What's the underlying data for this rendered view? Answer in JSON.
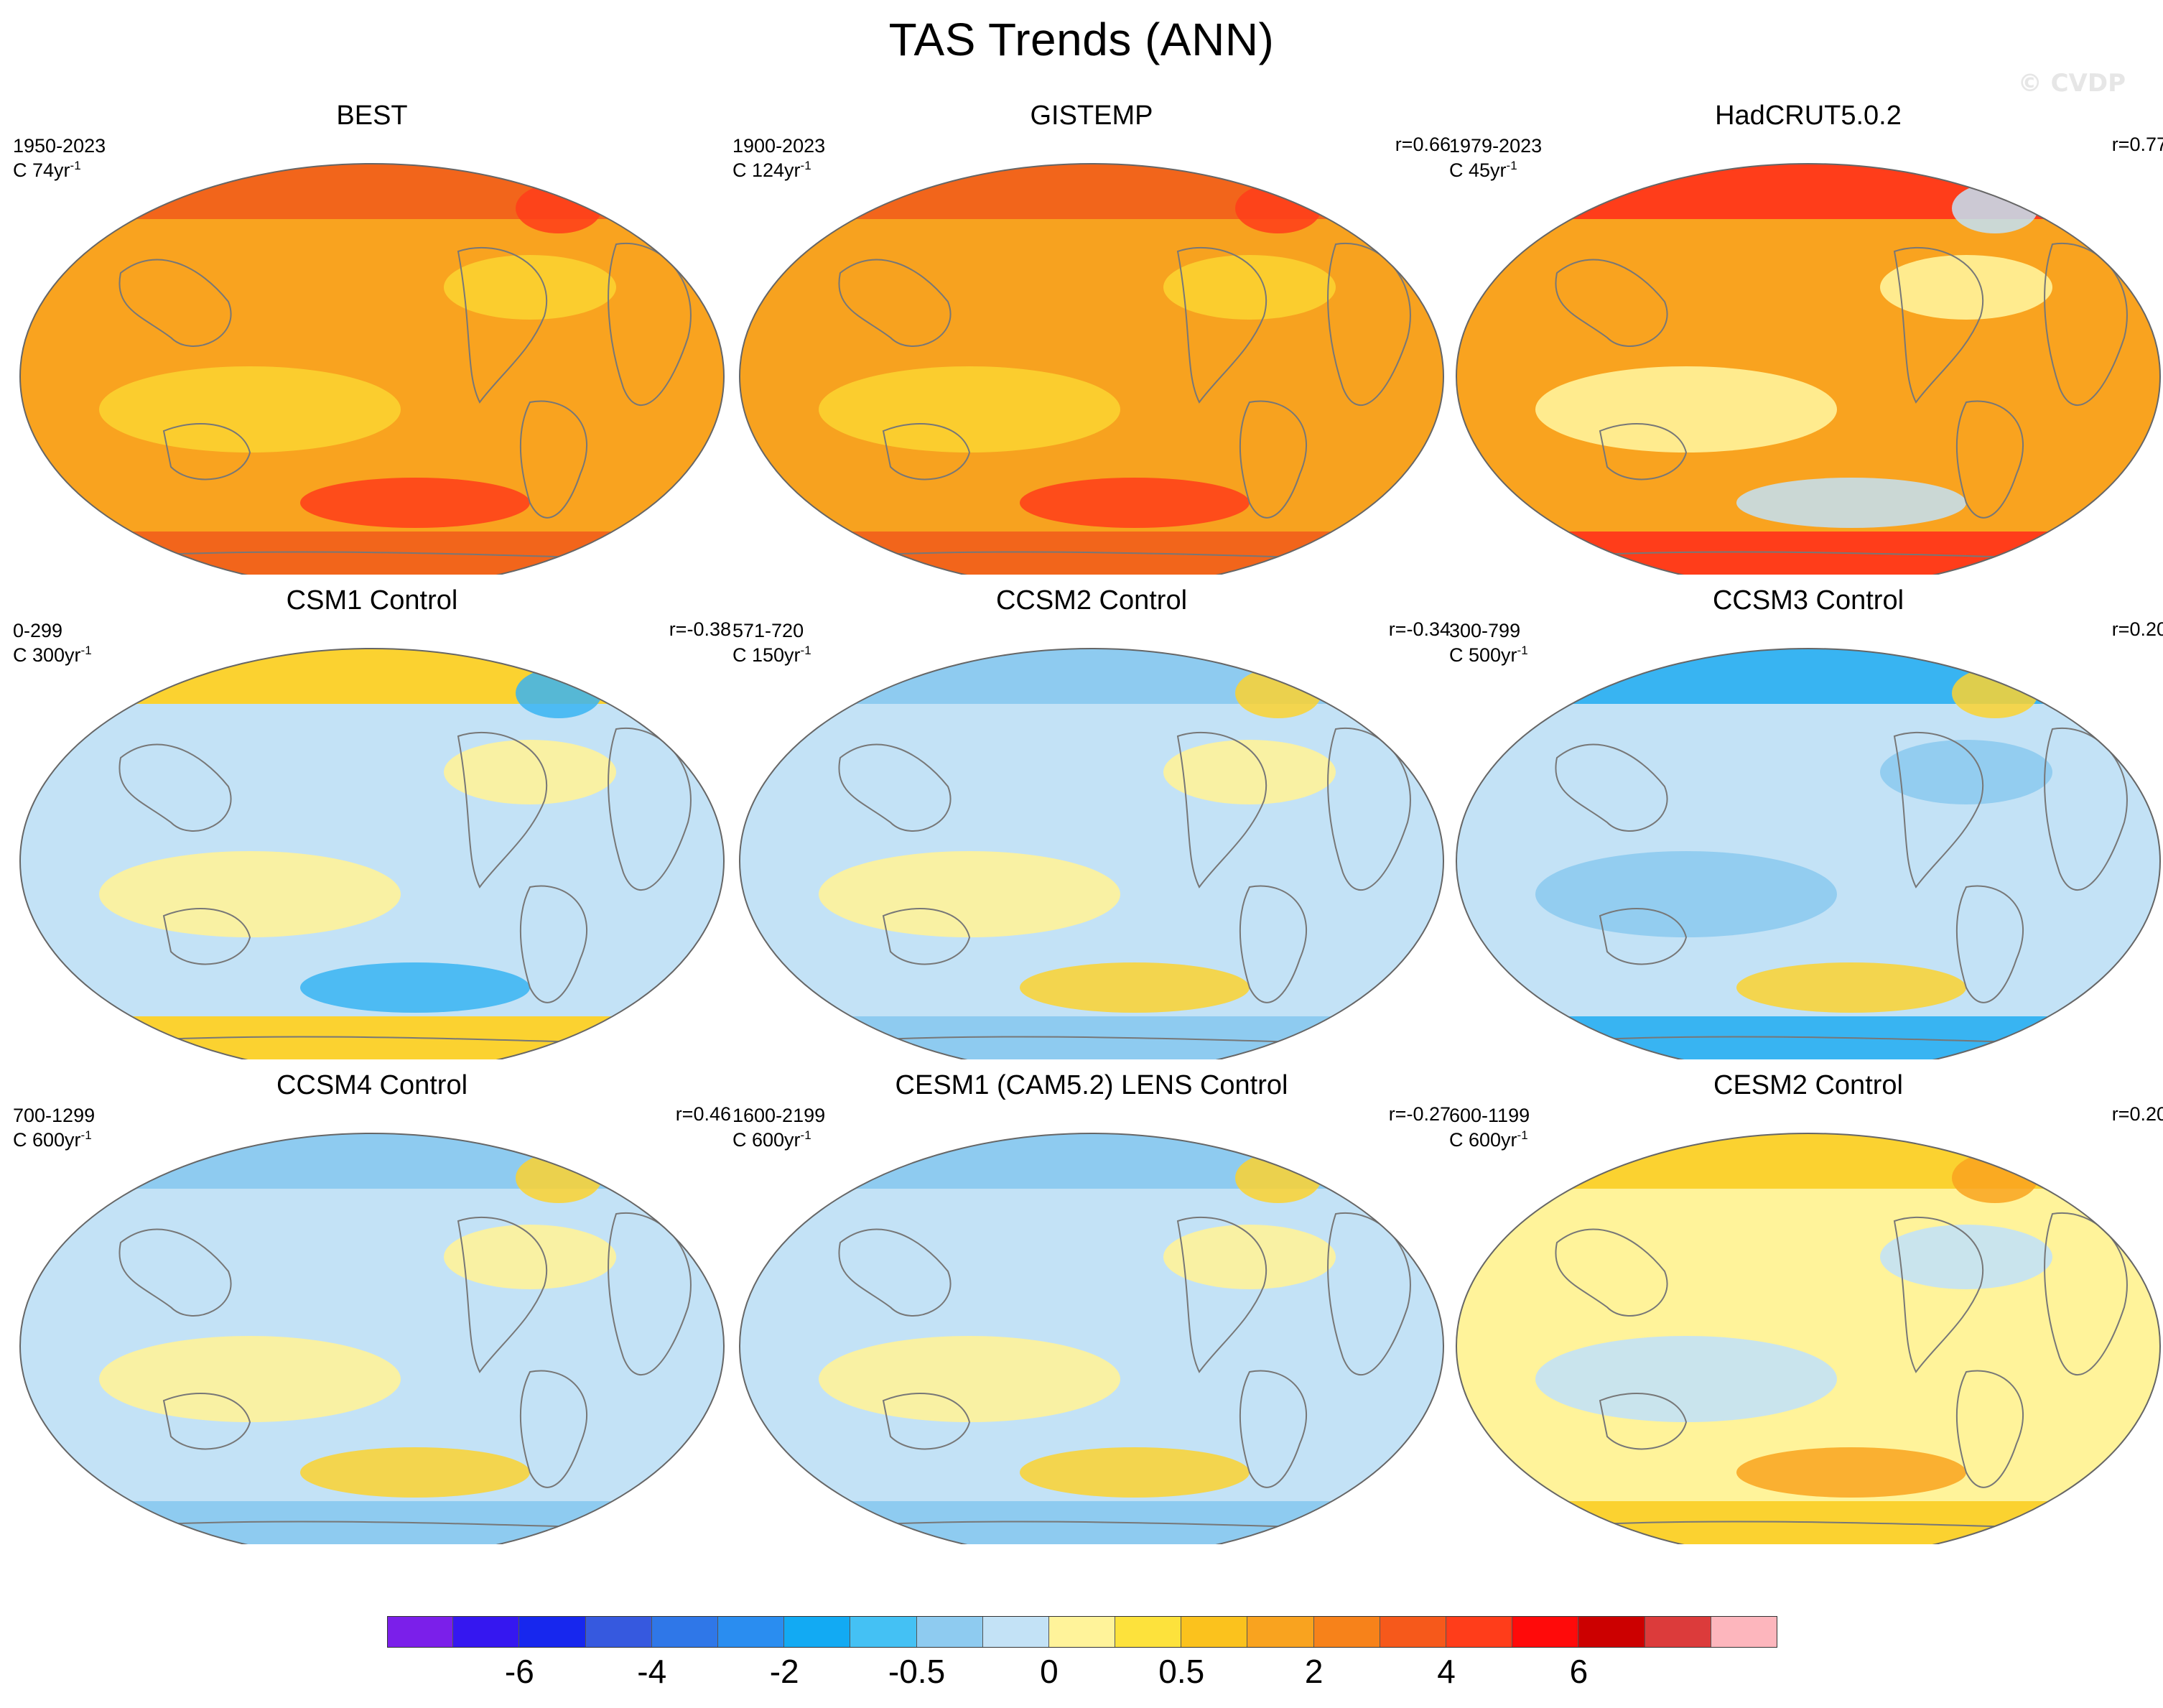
{
  "title": "TAS Trends (ANN)",
  "watermark": "© CVDP",
  "panels": [
    {
      "name": "BEST",
      "period": "1950-2023",
      "trend_len": "C 74yr",
      "corr": "",
      "colors": {
        "base": "#f9a31f",
        "poles": "#f2651b",
        "blob1": "#fbd230",
        "blob2": "#ff3d1a"
      }
    },
    {
      "name": "GISTEMP",
      "period": "1900-2023",
      "trend_len": "C 124yr",
      "corr": "r=0.66",
      "colors": {
        "base": "#f7a21f",
        "poles": "#f2651b",
        "blob1": "#fbd230",
        "blob2": "#ff3d1a"
      }
    },
    {
      "name": "HadCRUT5.0.2",
      "period": "1979-2023",
      "trend_len": "C 45yr",
      "corr": "r=0.77",
      "colors": {
        "base": "#f9a31f",
        "poles": "#ff3d1a",
        "blob1": "#fff39a",
        "blob2": "#c3e2f6"
      }
    },
    {
      "name": "CSM1 Control",
      "period": "0-299",
      "trend_len": "C 300yr",
      "corr": "r=-0.38",
      "colors": {
        "base": "#c3e2f6",
        "poles": "#fbd230",
        "blob1": "#fff39a",
        "blob2": "#38b4f2"
      }
    },
    {
      "name": "CCSM2 Control",
      "period": "571-720",
      "trend_len": "C 150yr",
      "corr": "r=-0.34",
      "colors": {
        "base": "#c3e2f6",
        "poles": "#8ecbf0",
        "blob1": "#fff39a",
        "blob2": "#fbd230"
      }
    },
    {
      "name": "CCSM3 Control",
      "period": "300-799",
      "trend_len": "C 500yr",
      "corr": "r=0.20",
      "colors": {
        "base": "#c3e2f6",
        "poles": "#38b4f2",
        "blob1": "#8ecbf0",
        "blob2": "#fbd230"
      }
    },
    {
      "name": "CCSM4 Control",
      "period": "700-1299",
      "trend_len": "C 600yr",
      "corr": "r=0.46",
      "colors": {
        "base": "#c3e2f6",
        "poles": "#8ecbf0",
        "blob1": "#fff39a",
        "blob2": "#fbd230"
      }
    },
    {
      "name": "CESM1 (CAM5.2) LENS Control",
      "period": "1600-2199",
      "trend_len": "C 600yr",
      "corr": "r=-0.27",
      "colors": {
        "base": "#c3e2f6",
        "poles": "#8ecbf0",
        "blob1": "#fff39a",
        "blob2": "#fbd230"
      }
    },
    {
      "name": "CESM2 Control",
      "period": "600-1199",
      "trend_len": "C 600yr",
      "corr": "r=0.20",
      "colors": {
        "base": "#fff39a",
        "poles": "#fbd230",
        "blob1": "#c3e2f6",
        "blob2": "#f9a31f"
      }
    }
  ],
  "colorbar": {
    "colors": [
      "#7b1fea",
      "#3517f0",
      "#1727ee",
      "#3659df",
      "#2f77e8",
      "#2a8df0",
      "#12aaf3",
      "#44c1f4",
      "#8ecbf0",
      "#c3e2f6",
      "#fff39a",
      "#fde23c",
      "#fbc21d",
      "#f9a31f",
      "#f7821a",
      "#f6591b",
      "#ff3d1a",
      "#ff0a0a",
      "#cc0000",
      "#dc3b3b",
      "#fdb6bd"
    ],
    "labels": [
      "-6",
      "-4",
      "-2",
      "-0.5",
      "0",
      "0.5",
      "2",
      "4",
      "6"
    ]
  }
}
